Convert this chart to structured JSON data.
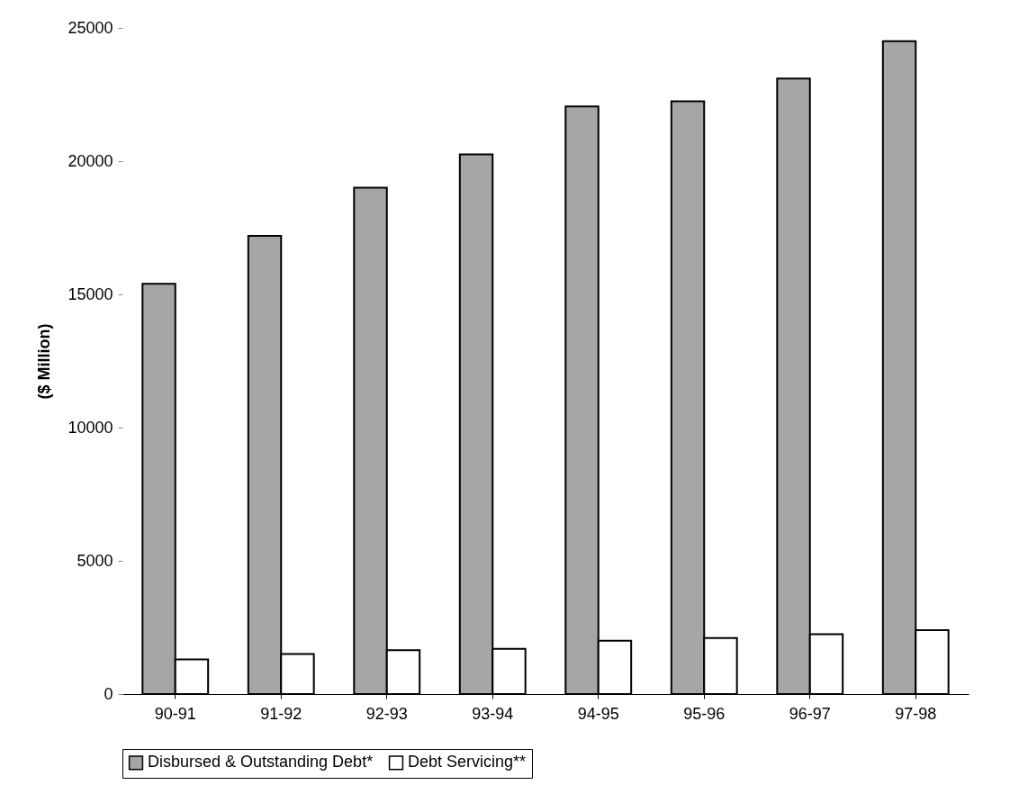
{
  "chart_data": {
    "type": "bar",
    "ylabel": "($ Million)",
    "categories": [
      "90-91",
      "91-92",
      "92-93",
      "93-94",
      "94-95",
      "95-96",
      "96-97",
      "97-98"
    ],
    "series": [
      {
        "name": "Disbursed & Outstanding Debt*",
        "color": "#a6a6a6",
        "values": [
          15400,
          17200,
          19000,
          20250,
          22050,
          22250,
          23100,
          24500
        ]
      },
      {
        "name": "Debt Servicing**",
        "color": "#ffffff",
        "values": [
          1300,
          1500,
          1650,
          1700,
          2000,
          2100,
          2250,
          2400
        ]
      }
    ],
    "ylim": [
      0,
      25000
    ],
    "yticks": [
      0,
      5000,
      10000,
      15000,
      20000,
      25000
    ],
    "grid": false,
    "legend": "bottom"
  }
}
